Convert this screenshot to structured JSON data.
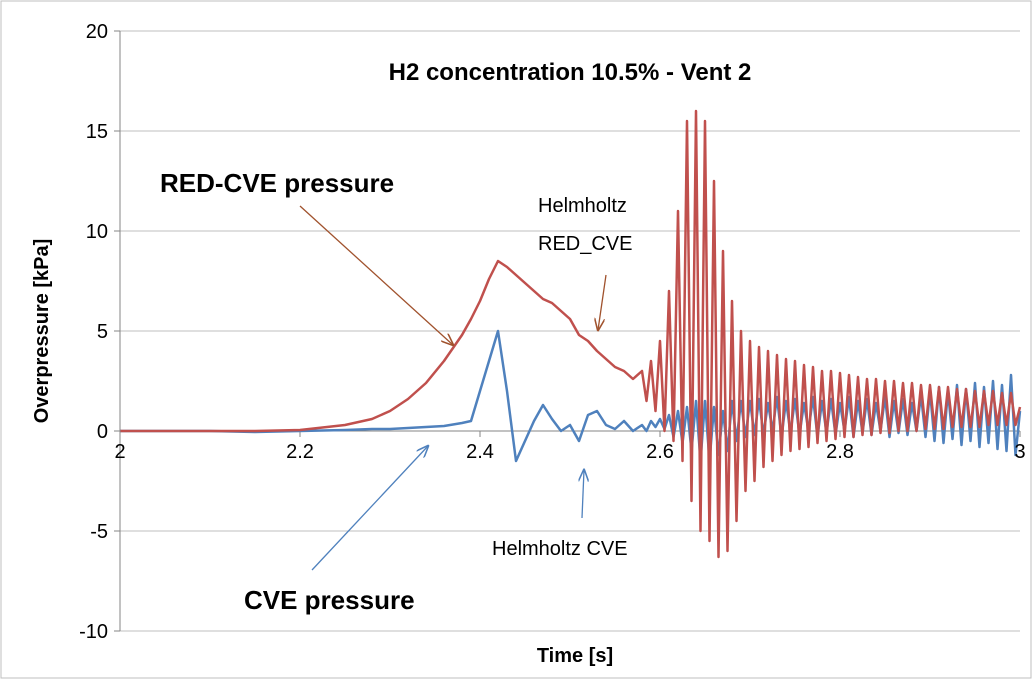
{
  "chart_data": {
    "type": "line",
    "title": "H2 concentration 10.5% - Vent 2",
    "x_label": "Time [s]",
    "y_label": "Overpressure [kPa]",
    "annotations": [
      "RED-CVE pressure",
      "Helmholtz",
      "RED_CVE",
      "Helmholtz CVE",
      "CVE pressure"
    ],
    "xlim": [
      2,
      3
    ],
    "xticks": [
      2,
      2.2,
      2.4,
      2.6,
      2.8,
      3
    ],
    "ylim": [
      -10,
      20
    ],
    "yticks": [
      -10,
      -5,
      0,
      5,
      10,
      15,
      20
    ],
    "grid": true,
    "x": [
      2.0,
      2.05,
      2.1,
      2.15,
      2.2,
      2.25,
      2.28,
      2.3,
      2.32,
      2.34,
      2.36,
      2.38,
      2.39,
      2.4,
      2.41,
      2.42,
      2.43,
      2.44,
      2.45,
      2.46,
      2.47,
      2.48,
      2.49,
      2.5,
      2.51,
      2.52,
      2.53,
      2.54,
      2.55,
      2.56,
      2.57,
      2.58,
      2.585,
      2.59,
      2.595,
      2.6,
      2.605,
      2.61,
      2.615,
      2.62,
      2.625,
      2.63,
      2.635,
      2.64,
      2.645,
      2.65,
      2.655,
      2.66,
      2.665,
      2.67,
      2.675,
      2.68,
      2.685,
      2.69,
      2.695,
      2.7,
      2.705,
      2.71,
      2.715,
      2.72,
      2.725,
      2.73,
      2.735,
      2.74,
      2.745,
      2.75,
      2.755,
      2.76,
      2.765,
      2.77,
      2.775,
      2.78,
      2.785,
      2.79,
      2.795,
      2.8,
      2.805,
      2.81,
      2.815,
      2.82,
      2.825,
      2.83,
      2.835,
      2.84,
      2.845,
      2.85,
      2.855,
      2.86,
      2.865,
      2.87,
      2.875,
      2.88,
      2.885,
      2.89,
      2.895,
      2.9,
      2.905,
      2.91,
      2.915,
      2.92,
      2.925,
      2.93,
      2.935,
      2.94,
      2.945,
      2.95,
      2.955,
      2.96,
      2.965,
      2.97,
      2.975,
      2.98,
      2.985,
      2.99,
      2.995,
      3.0
    ],
    "series": [
      {
        "name": "CVE pressure",
        "color": "#4f81bd",
        "values": [
          0,
          0,
          0,
          -0.05,
          0,
          0.05,
          0.1,
          0.1,
          0.15,
          0.2,
          0.25,
          0.4,
          0.5,
          2.0,
          3.5,
          5.0,
          2.0,
          -1.5,
          -0.5,
          0.5,
          1.3,
          0.6,
          0.0,
          0.3,
          -0.5,
          0.8,
          1.0,
          0.3,
          0.1,
          0.5,
          0.0,
          0.3,
          0.0,
          0.5,
          0.2,
          0.6,
          0.1,
          0.8,
          -0.3,
          1.0,
          -0.6,
          1.2,
          -1.0,
          1.5,
          -1.5,
          1.5,
          -1.5,
          1.2,
          -1.2,
          1.0,
          -1.0,
          1.5,
          -0.5,
          1.5,
          -0.3,
          1.5,
          -0.2,
          1.6,
          -0.2,
          1.4,
          0.0,
          1.7,
          -0.3,
          1.5,
          -0.1,
          1.6,
          -0.2,
          1.4,
          0.0,
          1.7,
          -0.3,
          1.5,
          -0.1,
          1.6,
          -0.2,
          1.4,
          0.0,
          1.7,
          -0.3,
          1.5,
          -0.1,
          1.6,
          -0.2,
          1.4,
          0.0,
          1.7,
          -0.3,
          1.5,
          -0.1,
          1.6,
          -0.2,
          1.4,
          0.0,
          1.8,
          -0.3,
          2.0,
          -0.5,
          2.2,
          -0.6,
          2.0,
          -0.4,
          2.3,
          -0.7,
          2.1,
          -0.5,
          2.4,
          -0.8,
          2.2,
          -0.6,
          2.5,
          -0.9,
          2.3,
          -1.0,
          2.8,
          -1.2,
          1.0
        ]
      },
      {
        "name": "RED-CVE pressure",
        "color": "#c0504d",
        "values": [
          0,
          0,
          0,
          0,
          0.05,
          0.3,
          0.6,
          1.0,
          1.6,
          2.4,
          3.5,
          4.8,
          5.6,
          6.5,
          7.6,
          8.5,
          8.2,
          7.8,
          7.4,
          7.0,
          6.6,
          6.4,
          6.0,
          5.6,
          4.8,
          4.5,
          4.0,
          3.6,
          3.2,
          3.0,
          2.6,
          3.0,
          1.5,
          3.5,
          1.0,
          4.5,
          0.0,
          7.0,
          -0.5,
          11.0,
          -1.5,
          15.5,
          -3.5,
          16.0,
          -5.0,
          15.5,
          -5.5,
          12.5,
          -6.3,
          9.0,
          -6.0,
          6.5,
          -4.5,
          5.0,
          -3.0,
          4.5,
          -2.5,
          4.2,
          -1.8,
          4.0,
          -1.5,
          3.8,
          -1.2,
          3.6,
          -1.0,
          3.5,
          -0.9,
          3.3,
          -0.8,
          3.2,
          -0.6,
          3.0,
          -0.5,
          3.0,
          -0.4,
          2.9,
          -0.3,
          2.8,
          -0.3,
          2.7,
          -0.2,
          2.6,
          -0.2,
          2.6,
          -0.1,
          2.5,
          -0.1,
          2.5,
          0.0,
          2.4,
          0.0,
          2.4,
          0.0,
          2.3,
          0.1,
          2.3,
          0.1,
          2.2,
          0.1,
          2.2,
          0.2,
          2.1,
          0.2,
          2.1,
          0.2,
          2.0,
          0.2,
          2.0,
          0.3,
          2.0,
          0.3,
          1.9,
          0.3,
          1.9,
          0.3,
          1.2
        ]
      }
    ]
  }
}
